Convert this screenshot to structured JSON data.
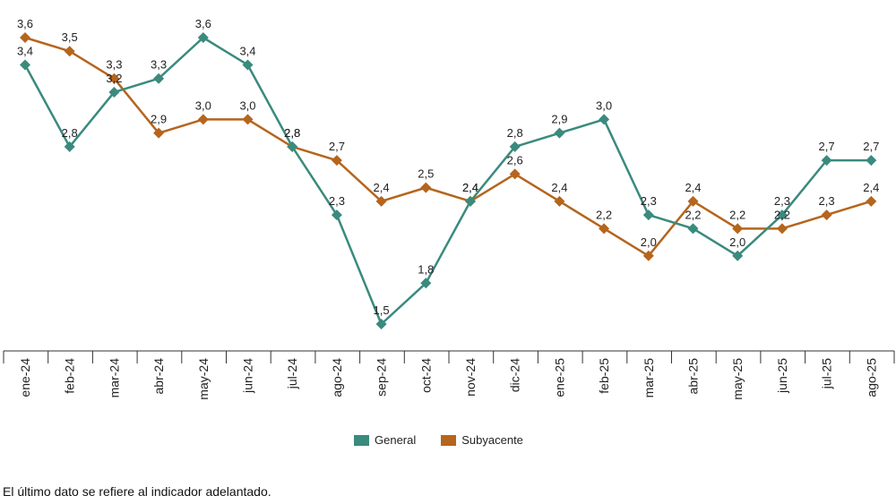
{
  "colors": {
    "general": "#3a8a7e",
    "subyacente": "#b5651d",
    "axis": "#333333"
  },
  "chart_data": {
    "type": "line",
    "categories": [
      "ene-24",
      "feb-24",
      "mar-24",
      "abr-24",
      "may-24",
      "jun-24",
      "jul-24",
      "ago-24",
      "sep-24",
      "oct-24",
      "nov-24",
      "dic-24",
      "ene-25",
      "feb-25",
      "mar-25",
      "abr-25",
      "may-25",
      "jun-25",
      "jul-25",
      "ago-25"
    ],
    "series": [
      {
        "name": "General",
        "values": [
          3.4,
          2.8,
          3.2,
          3.3,
          3.6,
          3.4,
          2.8,
          2.3,
          1.5,
          1.8,
          2.4,
          2.8,
          2.9,
          3.0,
          2.3,
          2.2,
          2.0,
          2.3,
          2.7,
          2.7
        ]
      },
      {
        "name": "Subyacente",
        "values": [
          3.6,
          3.5,
          3.3,
          2.9,
          3.0,
          3.0,
          2.8,
          2.7,
          2.4,
          2.5,
          2.4,
          2.6,
          2.4,
          2.2,
          2.0,
          2.4,
          2.2,
          2.2,
          2.3,
          2.4
        ]
      }
    ],
    "value_labels": {
      "General": [
        "3,4",
        "2,8",
        "3,2",
        "3,3",
        "3,6",
        "3,4",
        "2,8",
        "2,3",
        "1,5",
        "1,8",
        "2,4",
        "2,8",
        "2,9",
        "3,0",
        "2,3",
        "2,2",
        "2,0",
        "2,3",
        "2,7",
        "2,7"
      ],
      "Subyacente": [
        "3,6",
        "3,5",
        "3,3",
        "2,9",
        "3,0",
        "3,0",
        "2,8",
        "2,7",
        "2,4",
        "2,5",
        "2,4",
        "2,6",
        "2,4",
        "2,2",
        "2,0",
        "2,4",
        "2,2",
        "2,2",
        "2,3",
        "2,4"
      ]
    },
    "title": "",
    "xlabel": "",
    "ylabel": "",
    "ylim": [
      1.3,
      3.8
    ],
    "grid": false,
    "legend_position": "bottom-center"
  },
  "legend": {
    "general_label": "General",
    "subyacente_label": "Subyacente"
  },
  "footnote": "El último dato se refiere al indicador adelantado."
}
